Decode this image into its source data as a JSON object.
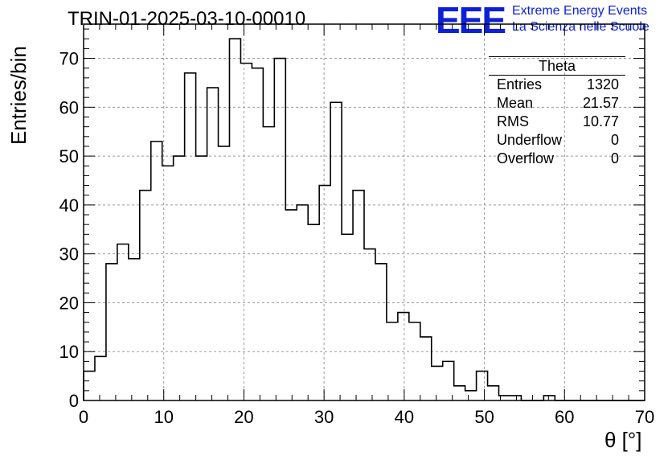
{
  "chart_data": {
    "type": "bar",
    "title": "TRIN-01-2025-03-10-00010",
    "xlabel": "θ [°]",
    "ylabel": "Entries/bin",
    "xlim": [
      0,
      70
    ],
    "ylim": [
      0,
      77
    ],
    "bin_width": 1.4,
    "grid": true,
    "x_ticks": [
      0,
      10,
      20,
      30,
      40,
      50,
      60,
      70
    ],
    "y_ticks": [
      0,
      10,
      20,
      30,
      40,
      50,
      60,
      70
    ],
    "values": [
      6,
      9,
      28,
      32,
      29,
      43,
      53,
      48,
      50,
      67,
      50,
      64,
      52,
      74,
      69,
      68,
      56,
      70,
      39,
      40,
      36,
      44,
      61,
      34,
      43,
      31,
      28,
      16,
      18,
      16,
      13,
      7,
      8,
      3,
      2,
      6,
      3,
      1,
      1,
      0,
      0,
      1,
      0,
      0,
      0,
      0,
      0,
      0,
      0,
      0
    ]
  },
  "stats_box": {
    "name": "Theta",
    "entries_label": "Entries",
    "entries": "1320",
    "mean_label": "Mean",
    "mean": "21.57",
    "rms_label": "RMS",
    "rms": "10.77",
    "underflow_label": "Underflow",
    "underflow": "0",
    "overflow_label": "Overflow",
    "overflow": "0"
  },
  "logo": {
    "mark": "EEE",
    "line1": "Extreme Energy Events",
    "line2": "La Scienza nelle Scuole",
    "color": "#0d20d8"
  }
}
